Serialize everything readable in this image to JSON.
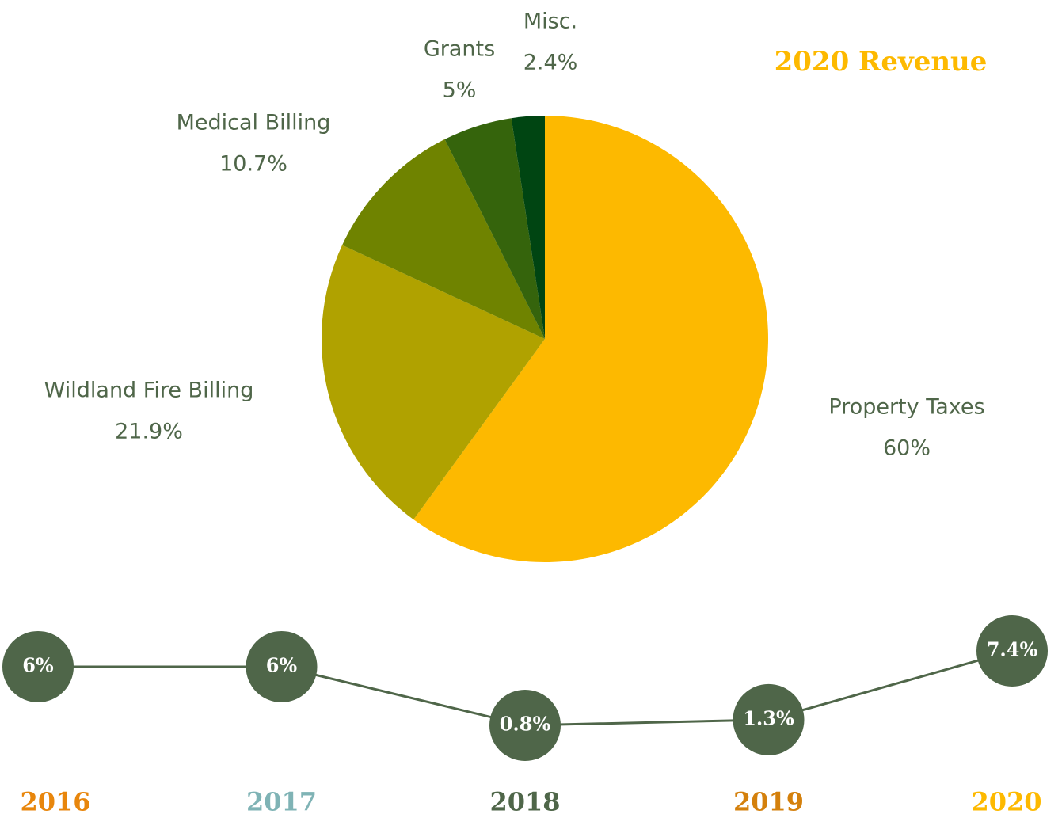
{
  "chart_data": [
    {
      "type": "pie",
      "title": "2020 Revenue",
      "categories": [
        "Property Taxes",
        "Wildland Fire Billing",
        "Medical Billing",
        "Grants",
        "Misc."
      ],
      "values": [
        60,
        21.9,
        10.7,
        5,
        2.4
      ],
      "value_labels": [
        "60%",
        "21.9%",
        "10.7%",
        "5%",
        "2.4%"
      ],
      "colors": [
        "#FDB900",
        "#B0A200",
        "#6F8300",
        "#35640C",
        "#004512"
      ]
    },
    {
      "type": "line",
      "categories": [
        "2016",
        "2017",
        "2018",
        "2019",
        "2020"
      ],
      "values": [
        6,
        6,
        0.8,
        1.3,
        7.4
      ],
      "value_labels": [
        "6%",
        "6%",
        "0.8%",
        "1.3%",
        "7.4%"
      ],
      "color": "#4F6649",
      "category_colors": [
        "#E8860C",
        "#7FB3B5",
        "#4F6649",
        "#D4800C",
        "#FDB900"
      ]
    }
  ]
}
